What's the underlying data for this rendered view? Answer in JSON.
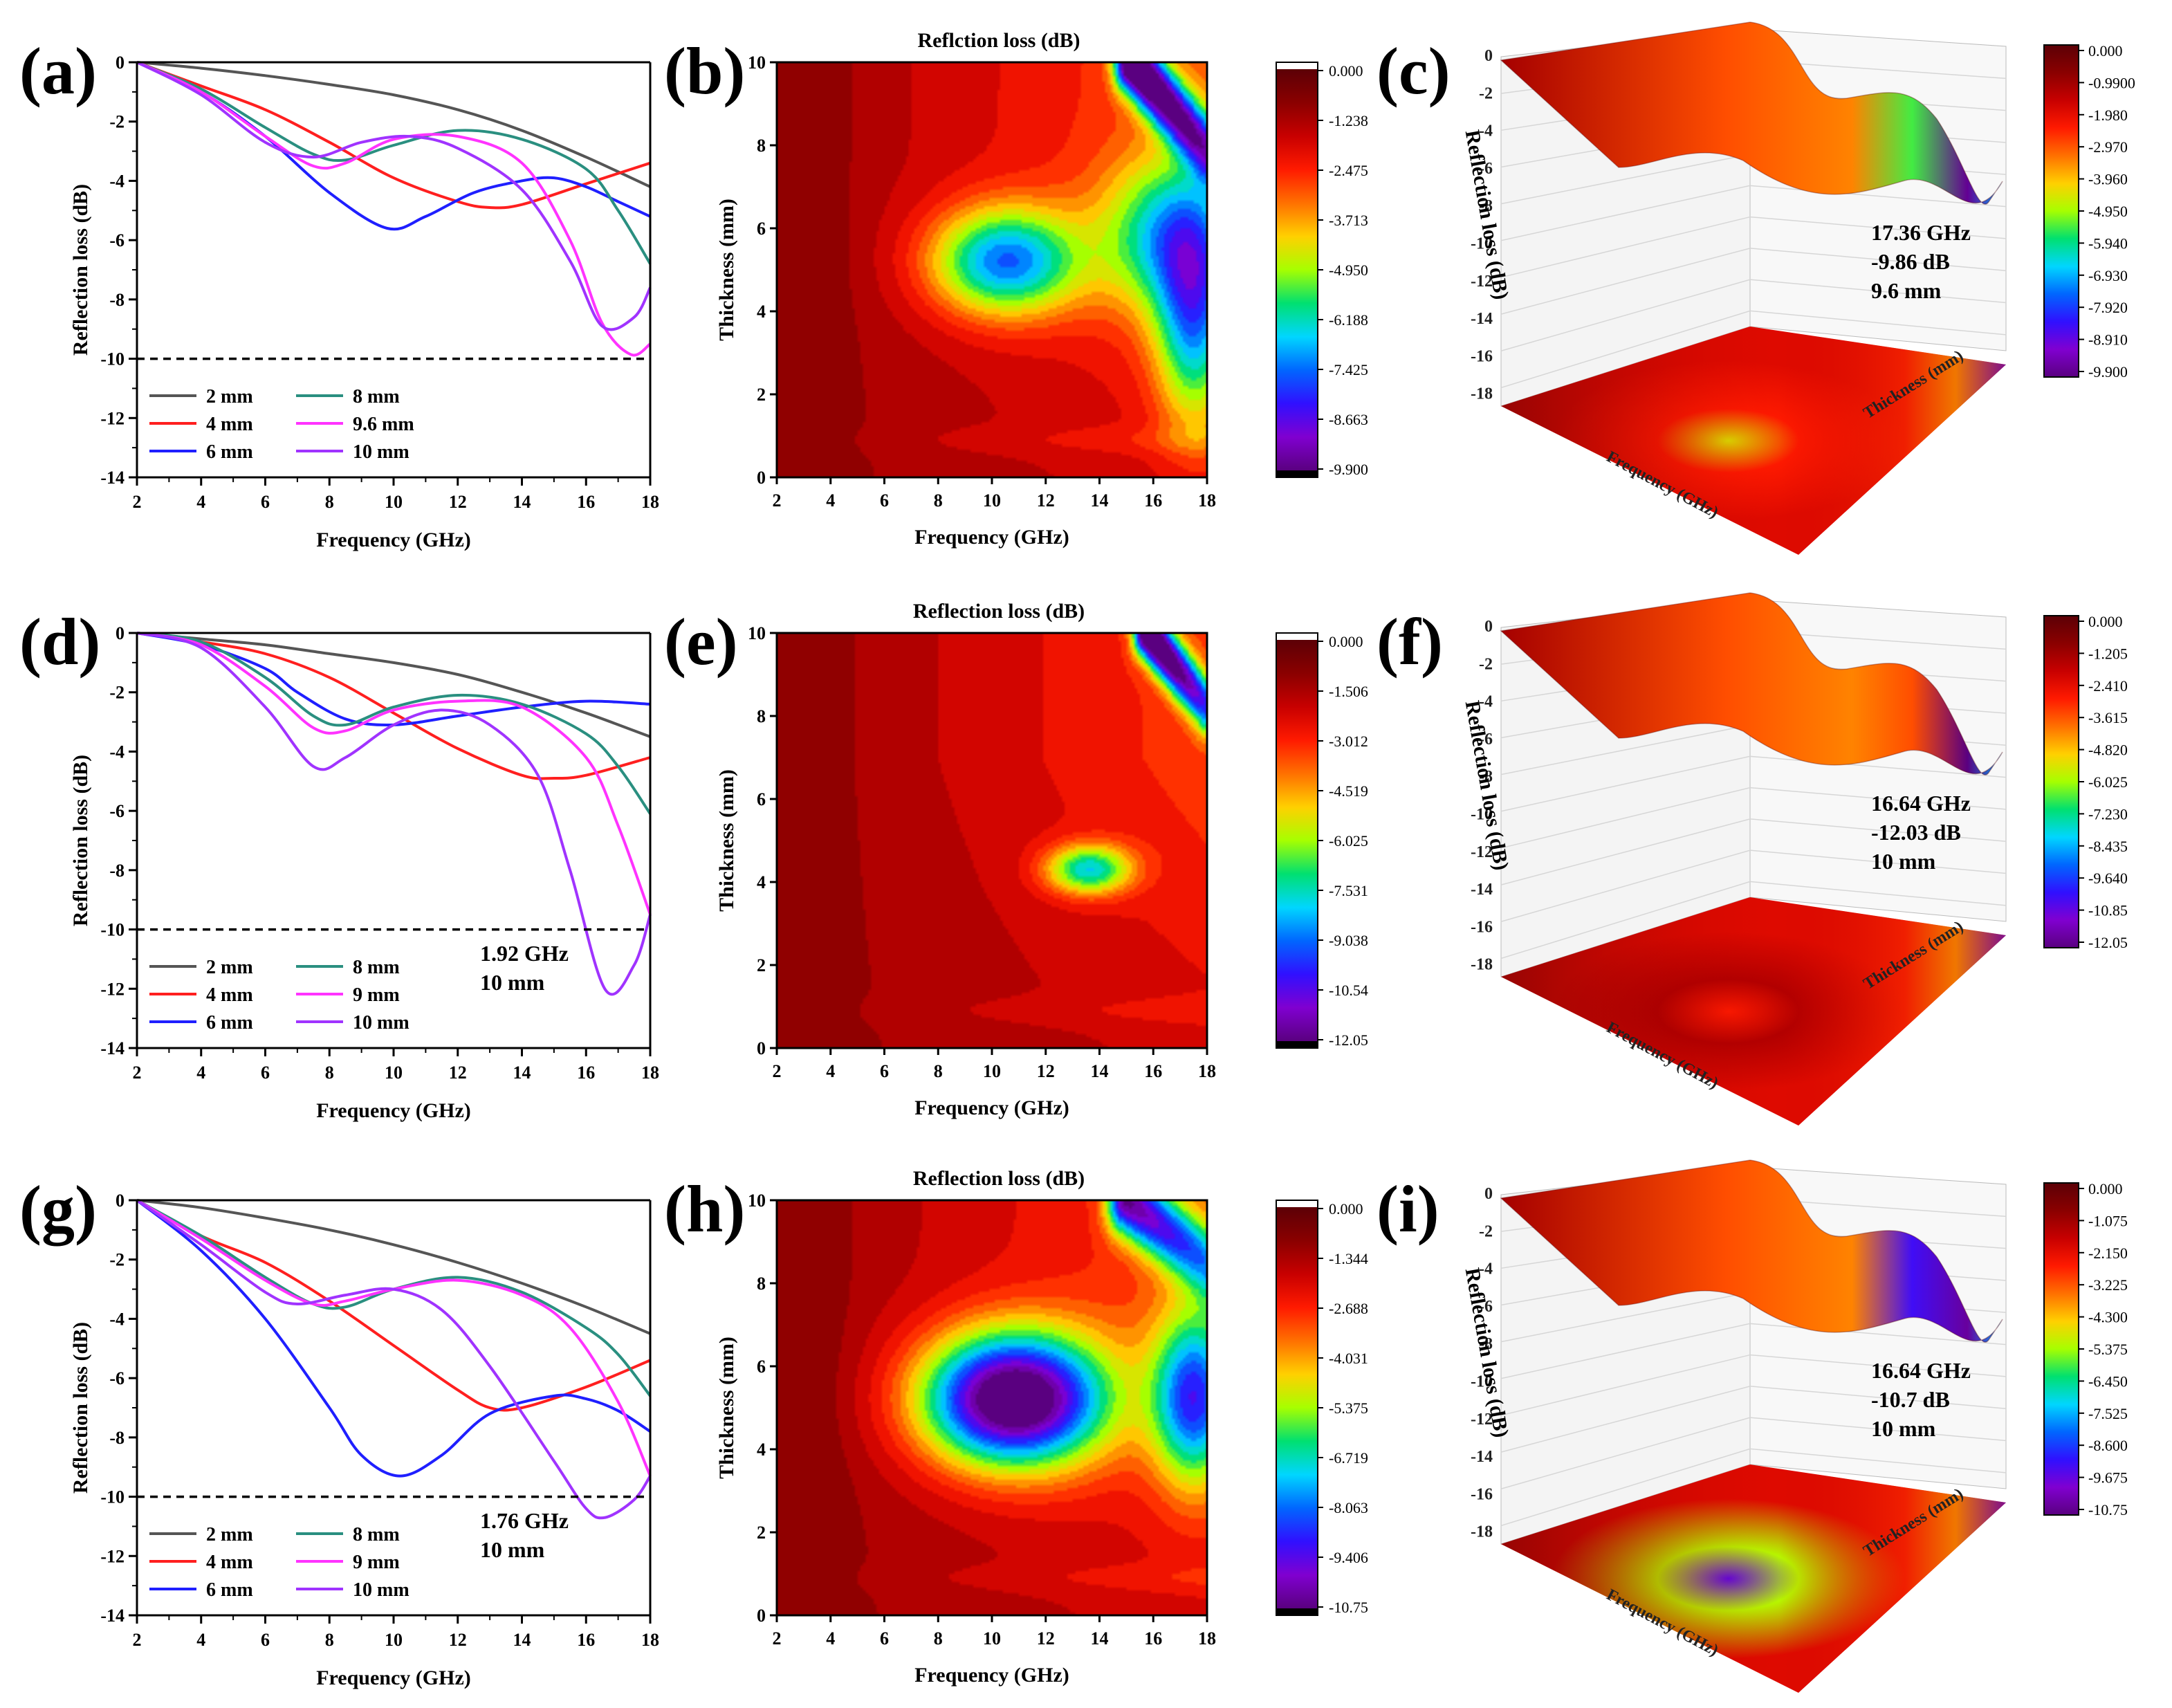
{
  "colorscale": [
    "#5c0006",
    "#8a0000",
    "#c80000",
    "#ff1a00",
    "#ff7000",
    "#ffd000",
    "#a6ff00",
    "#00e070",
    "#00d6ff",
    "#0066ff",
    "#3010ff",
    "#8000d0",
    "#5a0080"
  ],
  "line_series": [
    {
      "name": "2 mm",
      "color": "#555555"
    },
    {
      "name": "4 mm",
      "color": "#ff1f1f"
    },
    {
      "name": "6 mm",
      "color": "#1f1fff"
    },
    {
      "name": "8 mm",
      "color": "#2a8f80"
    },
    {
      "name": "9.6 mm",
      "color": "#ff33ff"
    },
    {
      "name": "10 mm",
      "color": "#a033ff"
    }
  ],
  "chart_data": [
    {
      "panel": "(a)",
      "type": "line",
      "xlabel": "Frequency (GHz)",
      "ylabel": "Reflection loss (dB)",
      "xlim": [
        2,
        18
      ],
      "ylim": [
        -14,
        0
      ],
      "xticks": [
        "2",
        "4",
        "6",
        "8",
        "10",
        "12",
        "14",
        "16",
        "18"
      ],
      "yticks": [
        "0",
        "-2",
        "-4",
        "-6",
        "-8",
        "-10",
        "-12",
        "-14"
      ],
      "reference_line": -10,
      "series": [
        {
          "name": "2 mm",
          "x": [
            2,
            4,
            6,
            8,
            10,
            12,
            14,
            16,
            18
          ],
          "y": [
            0,
            -0.2,
            -0.45,
            -0.75,
            -1.1,
            -1.6,
            -2.3,
            -3.2,
            -4.2
          ]
        },
        {
          "name": "4 mm",
          "x": [
            2,
            4,
            6,
            8,
            10,
            12,
            13,
            14,
            16,
            18
          ],
          "y": [
            0,
            -0.8,
            -1.6,
            -2.7,
            -3.9,
            -4.7,
            -4.9,
            -4.8,
            -4.1,
            -3.4
          ]
        },
        {
          "name": "6 mm",
          "x": [
            2,
            4,
            6,
            8,
            9.8,
            11,
            12.5,
            14,
            15,
            16,
            17,
            18
          ],
          "y": [
            0,
            -1,
            -2.5,
            -4.4,
            -5.6,
            -5.2,
            -4.4,
            -4,
            -3.9,
            -4.2,
            -4.7,
            -5.2
          ]
        },
        {
          "name": "8 mm",
          "x": [
            2,
            4,
            6,
            7.5,
            8.5,
            10,
            12,
            14,
            16,
            17,
            18
          ],
          "y": [
            0,
            -0.9,
            -2.2,
            -3.1,
            -3.3,
            -2.8,
            -2.3,
            -2.6,
            -3.6,
            -5,
            -6.8
          ]
        },
        {
          "name": "9.6 mm",
          "x": [
            2,
            4,
            6,
            7.5,
            8.5,
            10,
            12,
            14,
            15.5,
            16.5,
            17.4,
            18
          ],
          "y": [
            0,
            -1,
            -2.5,
            -3.5,
            -3.4,
            -2.6,
            -2.5,
            -3.4,
            -6,
            -8.8,
            -9.86,
            -9.5
          ]
        },
        {
          "name": "10 mm",
          "x": [
            2,
            4,
            6,
            7.5,
            9,
            10.5,
            12,
            14,
            15.5,
            16.5,
            17.5,
            18
          ],
          "y": [
            0,
            -1.1,
            -2.7,
            -3.2,
            -2.7,
            -2.5,
            -2.9,
            -4.3,
            -6.7,
            -8.9,
            -8.6,
            -7.6
          ]
        }
      ],
      "legend": [
        "2 mm",
        "4 mm",
        "6 mm",
        "8 mm",
        "9.6 mm",
        "10 mm"
      ],
      "annotation": []
    },
    {
      "panel": "(d)",
      "type": "line",
      "xlabel": "Frequency (GHz)",
      "ylabel": "Reflection loss (dB)",
      "xlim": [
        2,
        18
      ],
      "ylim": [
        -14,
        0
      ],
      "xticks": [
        "2",
        "4",
        "6",
        "8",
        "10",
        "12",
        "14",
        "16",
        "18"
      ],
      "yticks": [
        "0",
        "-2",
        "-4",
        "-6",
        "-8",
        "-10",
        "-12",
        "-14"
      ],
      "reference_line": -10,
      "series": [
        {
          "name": "2 mm",
          "x": [
            2,
            4,
            6,
            8,
            10,
            12,
            14,
            16,
            18
          ],
          "y": [
            0,
            -0.2,
            -0.4,
            -0.7,
            -1,
            -1.4,
            -2,
            -2.7,
            -3.5
          ]
        },
        {
          "name": "4 mm",
          "x": [
            2,
            4,
            6,
            8,
            10,
            12,
            14,
            15,
            16,
            18
          ],
          "y": [
            0,
            -0.3,
            -0.7,
            -1.5,
            -2.7,
            -3.9,
            -4.8,
            -4.9,
            -4.8,
            -4.2
          ]
        },
        {
          "name": "6 mm",
          "x": [
            2,
            4,
            6,
            7,
            8.5,
            10,
            12,
            14,
            16,
            18
          ],
          "y": [
            0,
            -0.4,
            -1.2,
            -2,
            -2.9,
            -3.1,
            -2.8,
            -2.5,
            -2.3,
            -2.4
          ]
        },
        {
          "name": "8 mm",
          "x": [
            2,
            4,
            6,
            7.5,
            8.5,
            10,
            12,
            14,
            16,
            17,
            18
          ],
          "y": [
            0,
            -0.3,
            -1.5,
            -2.8,
            -3.1,
            -2.5,
            -2.1,
            -2.4,
            -3.4,
            -4.5,
            -6.1
          ]
        },
        {
          "name": "9 mm",
          "x": [
            2,
            4,
            6,
            7.5,
            8.5,
            10,
            12,
            14,
            16,
            17,
            18
          ],
          "y": [
            0,
            -0.4,
            -1.8,
            -3.2,
            -3.3,
            -2.6,
            -2.3,
            -2.5,
            -4.2,
            -6.5,
            -9.5
          ]
        },
        {
          "name": "10 mm",
          "x": [
            2,
            4,
            6,
            7.5,
            8.5,
            10,
            11.5,
            13,
            14.5,
            15.5,
            16.6,
            17.5,
            18
          ],
          "y": [
            0,
            -0.5,
            -2.5,
            -4.5,
            -4.2,
            -3.1,
            -2.6,
            -3.1,
            -4.8,
            -8,
            -12.03,
            -11.2,
            -9.5
          ]
        }
      ],
      "legend": [
        "2 mm",
        "4 mm",
        "6 mm",
        "8 mm",
        "9 mm",
        "10 mm"
      ],
      "annotation": [
        "1.92 GHz",
        "10 mm"
      ]
    },
    {
      "panel": "(g)",
      "type": "line",
      "xlabel": "Frequency (GHz)",
      "ylabel": "Reflection loss (dB)",
      "xlim": [
        2,
        18
      ],
      "ylim": [
        -14,
        0
      ],
      "xticks": [
        "2",
        "4",
        "6",
        "8",
        "10",
        "12",
        "14",
        "16",
        "18"
      ],
      "yticks": [
        "0",
        "-2",
        "-4",
        "-6",
        "-8",
        "-10",
        "-12",
        "-14"
      ],
      "reference_line": -10,
      "series": [
        {
          "name": "2 mm",
          "x": [
            2,
            4,
            6,
            8,
            10,
            12,
            14,
            16,
            18
          ],
          "y": [
            0,
            -0.25,
            -0.6,
            -1,
            -1.5,
            -2.1,
            -2.8,
            -3.6,
            -4.5
          ]
        },
        {
          "name": "4 mm",
          "x": [
            2,
            4,
            6,
            8,
            10,
            12,
            13,
            14,
            16,
            18
          ],
          "y": [
            0,
            -1.2,
            -2.1,
            -3.4,
            -4.9,
            -6.4,
            -7,
            -7,
            -6.3,
            -5.4
          ]
        },
        {
          "name": "6 mm",
          "x": [
            2,
            4,
            6,
            8,
            9,
            10.2,
            11.5,
            13,
            15,
            16,
            17,
            18
          ],
          "y": [
            0,
            -1.7,
            -4,
            -7,
            -8.6,
            -9.3,
            -8.6,
            -7.2,
            -6.6,
            -6.7,
            -7.1,
            -7.8
          ]
        },
        {
          "name": "8 mm",
          "x": [
            2,
            4,
            6,
            7.5,
            8.5,
            10,
            12,
            14,
            16,
            17,
            18
          ],
          "y": [
            0,
            -1.2,
            -2.6,
            -3.5,
            -3.6,
            -3,
            -2.6,
            -3.1,
            -4.3,
            -5.2,
            -6.6
          ]
        },
        {
          "name": "9 mm",
          "x": [
            2,
            4,
            6,
            7.5,
            8.5,
            10,
            12,
            14,
            15.5,
            17,
            18
          ],
          "y": [
            0,
            -1.3,
            -2.7,
            -3.5,
            -3.4,
            -3,
            -2.7,
            -3.2,
            -4.3,
            -6.8,
            -9.3
          ]
        },
        {
          "name": "10 mm",
          "x": [
            2,
            4,
            6,
            7,
            8.5,
            10,
            11.5,
            13,
            15,
            16,
            16.6,
            17.5,
            18
          ],
          "y": [
            0,
            -1.5,
            -3.1,
            -3.5,
            -3.2,
            -3,
            -3.7,
            -5.6,
            -8.8,
            -10.4,
            -10.7,
            -10.1,
            -9.3
          ]
        }
      ],
      "legend": [
        "2 mm",
        "4 mm",
        "6 mm",
        "8 mm",
        "9 mm",
        "10 mm"
      ],
      "annotation": [
        "1.76 GHz",
        "10 mm"
      ]
    },
    {
      "panel": "(b)",
      "type": "heatmap",
      "title": "Reflction loss (dB)",
      "xlabel": "Frequency (GHz)",
      "ylabel": "Thickness (mm)",
      "xlim": [
        2,
        18
      ],
      "ylim": [
        0,
        10
      ],
      "xticks": [
        "2",
        "4",
        "6",
        "8",
        "10",
        "12",
        "14",
        "16",
        "18"
      ],
      "yticks": [
        "0",
        "2",
        "4",
        "6",
        "8",
        "10"
      ],
      "colorbar": [
        "0.000",
        "-1.238",
        "-2.475",
        "-3.713",
        "-4.950",
        "-6.188",
        "-7.425",
        "-8.663",
        "-9.900"
      ],
      "zmin": -9.9,
      "hotspots": [
        {
          "f": 10.5,
          "t": 5.2,
          "v": -5.6,
          "sf": 2.8,
          "st": 1.3
        },
        {
          "f": 17.5,
          "t": 3.8,
          "v": -4.5,
          "sf": 1.4,
          "st": 2.5
        },
        {
          "f": 16.5,
          "t": 5.8,
          "v": -3.8,
          "sf": 2.4,
          "st": 1.8
        }
      ],
      "ridge": [
        {
          "f0": 15.2,
          "t0": 10,
          "f1": 18,
          "t1": 7.9,
          "v": -9.9,
          "w": 0.6
        }
      ]
    },
    {
      "panel": "(e)",
      "type": "heatmap",
      "title": "Reflection loss (dB)",
      "xlabel": "Frequency (GHz)",
      "ylabel": "Thickness (mm)",
      "xlim": [
        2,
        18
      ],
      "ylim": [
        0,
        10
      ],
      "xticks": [
        "2",
        "4",
        "6",
        "8",
        "10",
        "12",
        "14",
        "16",
        "18"
      ],
      "yticks": [
        "0",
        "2",
        "4",
        "6",
        "8",
        "10"
      ],
      "colorbar": [
        "0.000",
        "-1.506",
        "-3.012",
        "-4.519",
        "-6.025",
        "-7.531",
        "-9.038",
        "-10.54",
        "-12.05"
      ],
      "zmin": -12.05,
      "hotspots": [
        {
          "f": 13.6,
          "t": 4.3,
          "v": -5.6,
          "sf": 1.6,
          "st": 0.6
        }
      ],
      "ridge": [
        {
          "f0": 15.8,
          "t0": 10,
          "f1": 18,
          "t1": 8.2,
          "v": -12,
          "w": 0.5
        }
      ]
    },
    {
      "panel": "(h)",
      "type": "heatmap",
      "title": "Reflection loss (dB)",
      "xlabel": "Frequency (GHz)",
      "ylabel": "Thickness (mm)",
      "xlim": [
        2,
        18
      ],
      "ylim": [
        0,
        10
      ],
      "xticks": [
        "2",
        "4",
        "6",
        "8",
        "10",
        "12",
        "14",
        "16",
        "18"
      ],
      "yticks": [
        "0",
        "2",
        "4",
        "6",
        "8",
        "10"
      ],
      "colorbar": [
        "0.000",
        "-1.344",
        "-2.688",
        "-4.031",
        "-5.375",
        "-6.719",
        "-8.063",
        "-9.406",
        "-10.75"
      ],
      "zmin": -10.75,
      "hotspots": [
        {
          "f": 10.8,
          "t": 5.2,
          "v": -10.2,
          "sf": 3.4,
          "st": 1.6
        },
        {
          "f": 17.5,
          "t": 5.2,
          "v": -6,
          "sf": 1.5,
          "st": 2
        }
      ],
      "ridge": [
        {
          "f0": 15,
          "t0": 10,
          "f1": 18,
          "t1": 8.5,
          "v": -8,
          "w": 0.7
        }
      ]
    },
    {
      "panel": "(c)",
      "type": "surface3d",
      "zlabel": "Reflection loss (dB)",
      "xlabel": "Frequency (GHz)",
      "ylabel": "Thickness (mm)",
      "zticks": [
        "0",
        "-2",
        "-4",
        "-6",
        "-8",
        "-10",
        "-12",
        "-14",
        "-16",
        "-18"
      ],
      "colorbar": [
        "0.000",
        "-0.9900",
        "-1.980",
        "-2.970",
        "-3.960",
        "-4.950",
        "-5.940",
        "-6.930",
        "-7.920",
        "-8.910",
        "-9.900"
      ],
      "annotation": [
        "17.36 GHz",
        "-9.86 dB",
        "9.6 mm"
      ]
    },
    {
      "panel": "(f)",
      "type": "surface3d",
      "zlabel": "Reflection loss (dB)",
      "xlabel": "Frequency (GHz)",
      "ylabel": "Thickness (mm)",
      "zticks": [
        "0",
        "-2",
        "-4",
        "-6",
        "-8",
        "-10",
        "-12",
        "-14",
        "-16",
        "-18"
      ],
      "colorbar": [
        "0.000",
        "-1.205",
        "-2.410",
        "-3.615",
        "-4.820",
        "-6.025",
        "-7.230",
        "-8.435",
        "-9.640",
        "-10.85",
        "-12.05"
      ],
      "annotation": [
        "16.64 GHz",
        "-12.03 dB",
        "10 mm"
      ]
    },
    {
      "panel": "(i)",
      "type": "surface3d",
      "zlabel": "Reflection loss (dB)",
      "xlabel": "Frequency (GHz)",
      "ylabel": "Thickness (mm)",
      "zticks": [
        "0",
        "-2",
        "-4",
        "-6",
        "-8",
        "-10",
        "-12",
        "-14",
        "-16",
        "-18"
      ],
      "colorbar": [
        "0.000",
        "-1.075",
        "-2.150",
        "-3.225",
        "-4.300",
        "-5.375",
        "-6.450",
        "-7.525",
        "-8.600",
        "-9.675",
        "-10.75"
      ],
      "annotation": [
        "16.64 GHz",
        "-10.7 dB",
        "10 mm"
      ]
    }
  ]
}
